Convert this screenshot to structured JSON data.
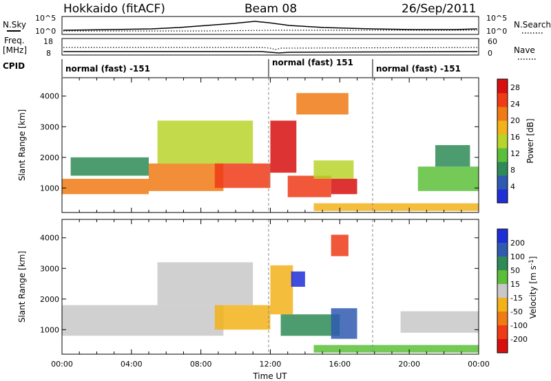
{
  "header": {
    "station": "Hokkaido (fitACF)",
    "beam": "Beam 08",
    "date": "26/Sep/2011"
  },
  "sky_panel": {
    "left_label": "N.Sky",
    "right_label": "N.Search",
    "left_ticks": [
      "10^5",
      "10^0"
    ],
    "right_ticks": [
      "10^5",
      "10^0"
    ]
  },
  "freq_panel": {
    "left_label_line1": "Freq.",
    "left_label_line2": "[MHz]",
    "right_label": "Nave",
    "left_ticks": [
      "18",
      "8"
    ],
    "right_ticks": [
      "60",
      "0"
    ]
  },
  "cpid": {
    "label": "CPID",
    "segments": [
      {
        "text": "normal (fast) -151",
        "start_hour": 0,
        "end_hour": 12
      },
      {
        "text": "normal (fast) 151",
        "start_hour": 12,
        "end_hour": 18
      },
      {
        "text": "normal (fast) -151",
        "start_hour": 18,
        "end_hour": 24
      }
    ]
  },
  "chart_data": [
    {
      "type": "heatmap",
      "title": "",
      "xlabel": "Time UT",
      "ylabel": "Slant Range [km]",
      "xlim": [
        0,
        24
      ],
      "ylim": [
        200,
        4600
      ],
      "x_ticks": [
        "00:00",
        "04:00",
        "08:00",
        "12:00",
        "16:00",
        "20:00",
        "00:00"
      ],
      "y_ticks": [
        1000,
        2000,
        3000,
        4000
      ],
      "colorbar": {
        "label": "Power [dB]",
        "ticks": [
          4,
          8,
          12,
          16,
          20,
          24,
          28
        ],
        "range": [
          0,
          30
        ],
        "colors": [
          "#1f2fd8",
          "#2f5ab0",
          "#2e8b57",
          "#5cbf3a",
          "#b8d42a",
          "#f2b21a",
          "#f07a14",
          "#ef3b16",
          "#d80f0f"
        ]
      },
      "regions": [
        {
          "start": 0.0,
          "end": 5.0,
          "range_min": 800,
          "range_max": 1300,
          "value": 22
        },
        {
          "start": 0.5,
          "end": 5.0,
          "range_min": 1400,
          "range_max": 2000,
          "value": 7
        },
        {
          "start": 5.0,
          "end": 9.3,
          "range_min": 900,
          "range_max": 1800,
          "value": 22
        },
        {
          "start": 5.5,
          "end": 11.0,
          "range_min": 1800,
          "range_max": 3200,
          "value": 16
        },
        {
          "start": 8.8,
          "end": 12.0,
          "range_min": 1000,
          "range_max": 1800,
          "value": 25
        },
        {
          "start": 12.0,
          "end": 13.5,
          "range_min": 1500,
          "range_max": 3200,
          "value": 27
        },
        {
          "start": 13.0,
          "end": 15.5,
          "range_min": 700,
          "range_max": 1400,
          "value": 24
        },
        {
          "start": 14.5,
          "end": 16.8,
          "range_min": 1300,
          "range_max": 1900,
          "value": 14
        },
        {
          "start": 15.5,
          "end": 17.0,
          "range_min": 800,
          "range_max": 1300,
          "value": 27
        },
        {
          "start": 13.5,
          "end": 16.5,
          "range_min": 3400,
          "range_max": 4100,
          "value": 20
        },
        {
          "start": 20.5,
          "end": 24.0,
          "range_min": 900,
          "range_max": 1700,
          "value": 12
        },
        {
          "start": 21.5,
          "end": 23.5,
          "range_min": 1700,
          "range_max": 2400,
          "value": 8
        },
        {
          "start": 14.5,
          "end": 24.0,
          "range_min": 250,
          "range_max": 500,
          "value": 18
        }
      ]
    },
    {
      "type": "heatmap",
      "title": "",
      "xlabel": "Time UT",
      "ylabel": "Slant Range [km]",
      "xlim": [
        0,
        24
      ],
      "ylim": [
        200,
        4600
      ],
      "x_ticks": [
        "00:00",
        "04:00",
        "08:00",
        "12:00",
        "16:00",
        "20:00",
        "00:00"
      ],
      "y_ticks": [
        1000,
        2000,
        3000,
        4000
      ],
      "colorbar": {
        "label": "Velocity [m s^-1]",
        "ticks": [
          200,
          100,
          50,
          15,
          -15,
          -50,
          -100,
          -200
        ],
        "colors": [
          "#1f2fd8",
          "#2f5ab0",
          "#2e8b57",
          "#5cbf3a",
          "#c8c8c8",
          "#f2b21a",
          "#f07a14",
          "#ef3b16",
          "#d80f0f"
        ]
      },
      "regions": [
        {
          "start": 0.0,
          "end": 9.3,
          "range_min": 800,
          "range_max": 1800,
          "value": 0
        },
        {
          "start": 5.5,
          "end": 11.0,
          "range_min": 1800,
          "range_max": 3200,
          "value": 0
        },
        {
          "start": 8.8,
          "end": 12.0,
          "range_min": 1000,
          "range_max": 1800,
          "value": -30
        },
        {
          "start": 12.0,
          "end": 13.3,
          "range_min": 1500,
          "range_max": 3100,
          "value": -30
        },
        {
          "start": 12.6,
          "end": 16.0,
          "range_min": 800,
          "range_max": 1500,
          "value": 60
        },
        {
          "start": 15.5,
          "end": 17.0,
          "range_min": 700,
          "range_max": 1700,
          "value": 150
        },
        {
          "start": 13.2,
          "end": 14.0,
          "range_min": 2400,
          "range_max": 2900,
          "value": 200
        },
        {
          "start": 15.5,
          "end": 16.5,
          "range_min": 3400,
          "range_max": 4100,
          "value": -200
        },
        {
          "start": 19.5,
          "end": 24.0,
          "range_min": 900,
          "range_max": 1600,
          "value": 0
        },
        {
          "start": 14.5,
          "end": 24.0,
          "range_min": 250,
          "range_max": 500,
          "value": 30
        }
      ]
    }
  ]
}
